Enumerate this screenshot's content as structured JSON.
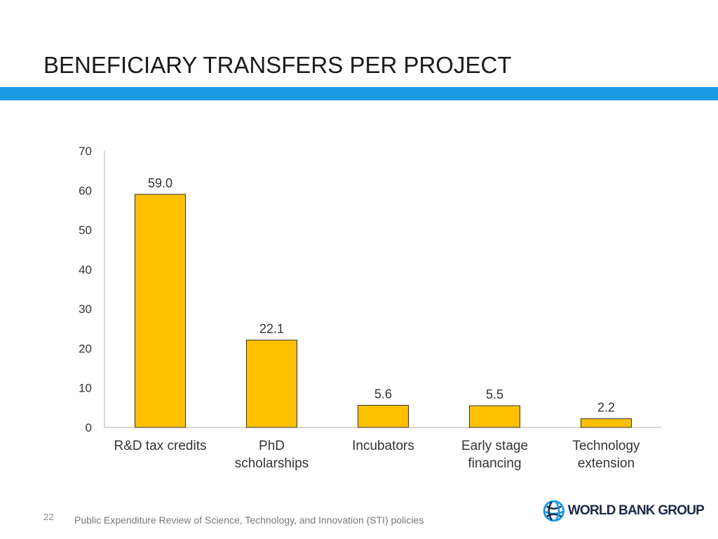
{
  "slide": {
    "title": "BENEFICIARY TRANSFERS PER PROJECT",
    "accent_color": "#1b9ae4",
    "page_number": "22",
    "footer": "Public Expenditure Review of Science, Technology, and Innovation (STI) policies",
    "logo_text": "WORLD BANK GROUP",
    "logo_icon": "globe-icon"
  },
  "chart_data": {
    "type": "bar",
    "title": "",
    "xlabel": "",
    "ylabel": "",
    "ylim": [
      0,
      70
    ],
    "yticks": [
      0,
      10,
      20,
      30,
      40,
      50,
      60,
      70
    ],
    "grid": false,
    "legend": "none",
    "bar_color": "#ffc000",
    "categories": [
      [
        "R&D tax credits"
      ],
      [
        "PhD",
        "scholarships"
      ],
      [
        "Incubators"
      ],
      [
        "Early stage",
        "financing"
      ],
      [
        "Technology",
        "extension"
      ]
    ],
    "values": [
      59.0,
      22.1,
      5.6,
      5.5,
      2.2
    ],
    "value_labels": [
      "59.0",
      "22.1",
      "5.6",
      "5.5",
      "2.2"
    ]
  }
}
